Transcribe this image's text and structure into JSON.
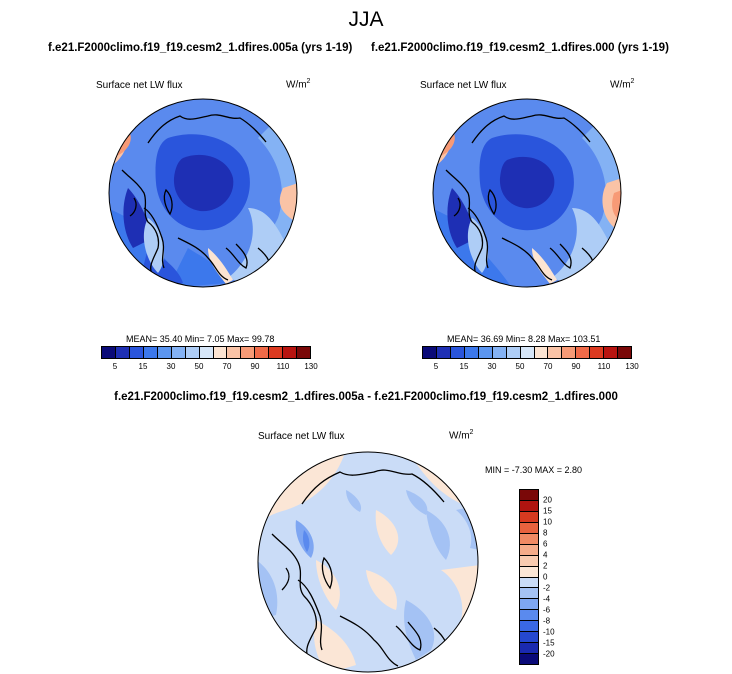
{
  "title": "JJA",
  "panels": [
    {
      "case_title": "f.e21.F2000climo.f19_f19.cesm2_1.dfires.005a (yrs 1-19)",
      "variable": "Surface net LW flux",
      "units_base": "W/m",
      "units_exp": "2",
      "stats": "MEAN=  35.40  Min=   7.05  Max=  99.78"
    },
    {
      "case_title": "f.e21.F2000climo.f19_f19.cesm2_1.dfires.000 (yrs 1-19)",
      "variable": "Surface net LW flux",
      "units_base": "W/m",
      "units_exp": "2",
      "stats": "MEAN=  36.69  Min=   8.28  Max=  103.51"
    }
  ],
  "diff": {
    "title": "f.e21.F2000climo.f19_f19.cesm2_1.dfires.005a - f.e21.F2000climo.f19_f19.cesm2_1.dfires.000",
    "variable": "Surface net LW flux",
    "units_base": "W/m",
    "units_exp": "2",
    "stats": "MIN =  -7.30 MAX =   2.80"
  },
  "chart_data": [
    {
      "type": "heatmap",
      "projection": "polar-stereographic",
      "title": "Surface net LW flux",
      "units": "W/m2",
      "stats": {
        "mean": 35.4,
        "min": 7.05,
        "max": 99.78
      },
      "colorbar": {
        "orientation": "horizontal",
        "tick_labels": [
          "5",
          "15",
          "30",
          "50",
          "70",
          "90",
          "110",
          "130"
        ],
        "colors": [
          "#0a0a78",
          "#1e2fb4",
          "#2a55dc",
          "#3c78ec",
          "#5c96f0",
          "#84b2f4",
          "#aecdf6",
          "#d6e6f8",
          "#fce4d2",
          "#fac3a6",
          "#f79a76",
          "#f06a48",
          "#dc3a20",
          "#b81410",
          "#7a0808"
        ]
      }
    },
    {
      "type": "heatmap",
      "projection": "polar-stereographic",
      "title": "Surface net LW flux",
      "units": "W/m2",
      "stats": {
        "mean": 36.69,
        "min": 8.28,
        "max": 103.51
      },
      "colorbar": {
        "orientation": "horizontal",
        "tick_labels": [
          "5",
          "15",
          "30",
          "50",
          "70",
          "90",
          "110",
          "130"
        ],
        "colors": [
          "#0a0a78",
          "#1e2fb4",
          "#2a55dc",
          "#3c78ec",
          "#5c96f0",
          "#84b2f4",
          "#aecdf6",
          "#d6e6f8",
          "#fce4d2",
          "#fac3a6",
          "#f79a76",
          "#f06a48",
          "#dc3a20",
          "#b81410",
          "#7a0808"
        ]
      }
    },
    {
      "type": "heatmap",
      "projection": "polar-stereographic",
      "title": "Surface net LW flux",
      "units": "W/m2",
      "stats": {
        "min": -7.3,
        "max": 2.8
      },
      "colorbar": {
        "orientation": "vertical",
        "tick_labels": [
          "-20",
          "-15",
          "-10",
          "-8",
          "-6",
          "-4",
          "-2",
          "0",
          "2",
          "4",
          "6",
          "8",
          "10",
          "15",
          "20"
        ],
        "colors": [
          "#0a0a78",
          "#1a2ab0",
          "#2548d0",
          "#3a68e4",
          "#5a8aee",
          "#7ea6f2",
          "#a4c2f4",
          "#cadcf7",
          "#fbe6d6",
          "#f9cbb0",
          "#f6ac8a",
          "#f18a64",
          "#e8623e",
          "#d63a20",
          "#b01410",
          "#7a0808"
        ]
      }
    }
  ]
}
